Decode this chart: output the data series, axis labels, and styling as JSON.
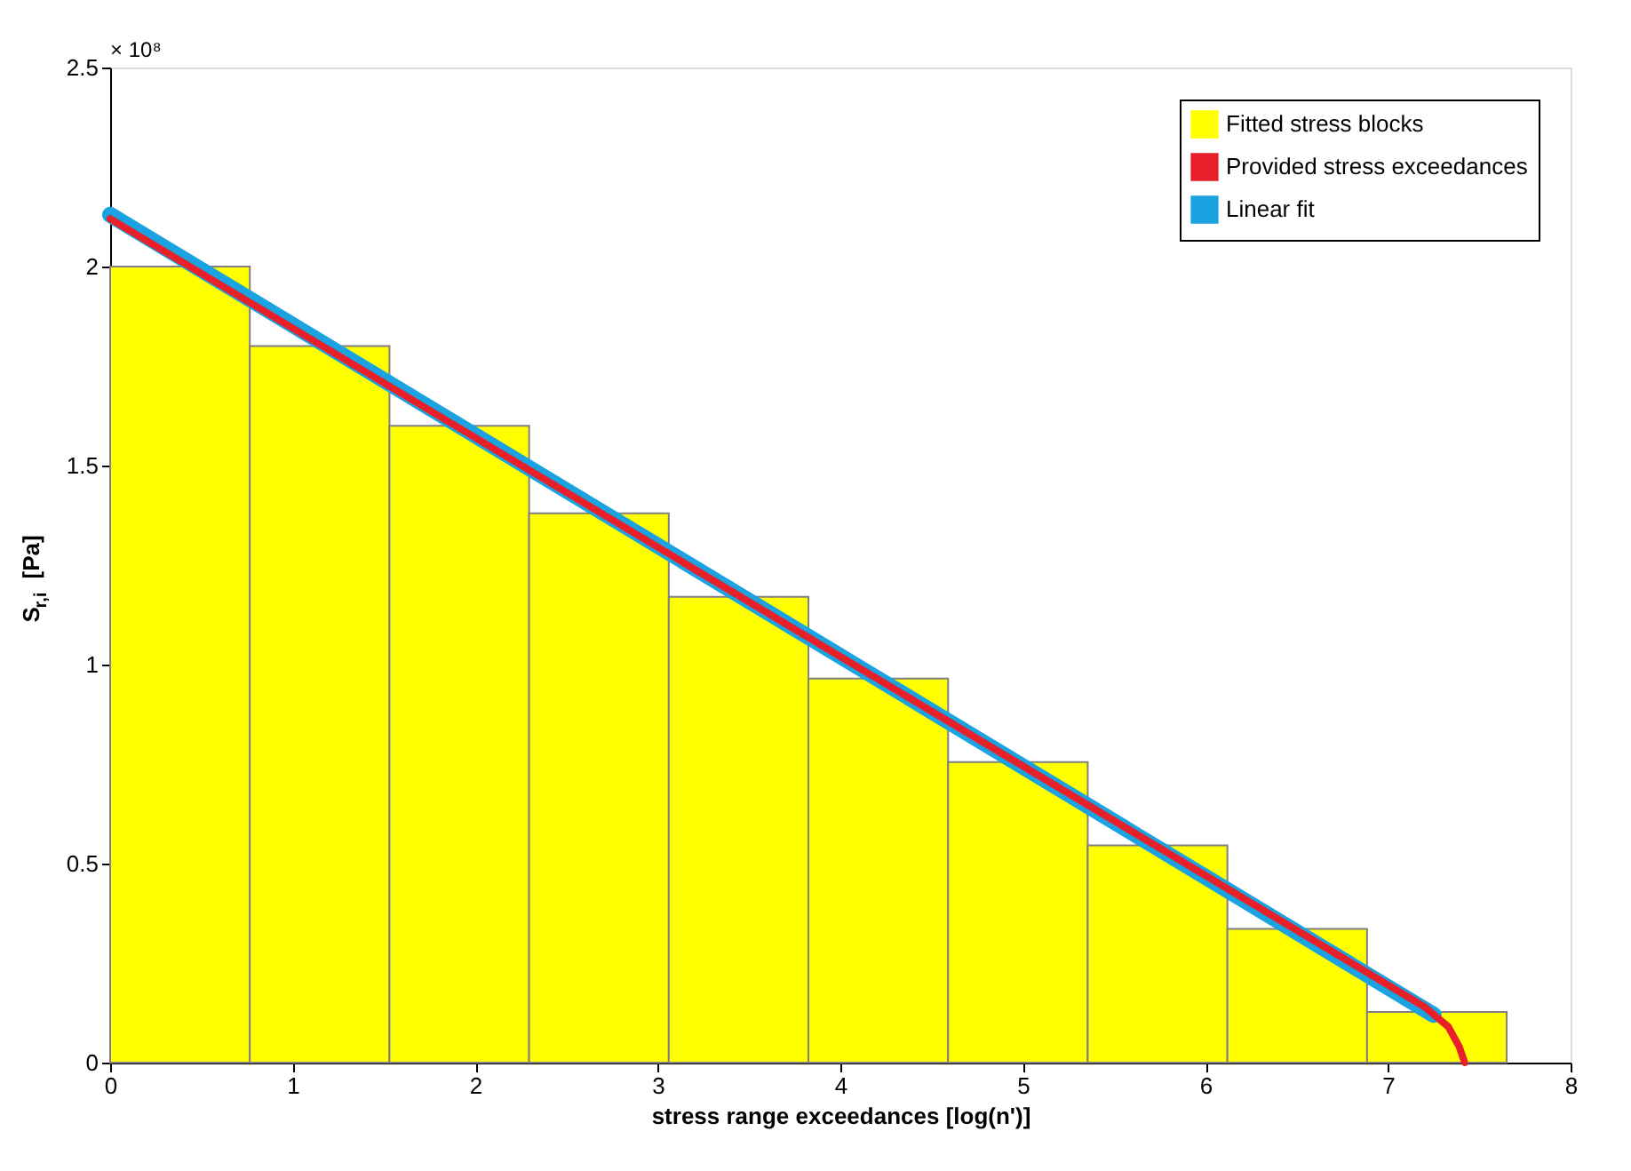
{
  "chart_data": {
    "type": "histogram",
    "xlabel": "stress range exceedances [log(n')]",
    "ylabel": "S$_{r,i}$ [Pa]",
    "annotations": [
      "× 10⁸"
    ],
    "xlim": [
      0,
      8
    ],
    "xticks": [
      0,
      1,
      2,
      3,
      4,
      5,
      6,
      7,
      8
    ],
    "ylim": [
      0,
      2.5
    ],
    "yticks": [
      0,
      0.5,
      1,
      1.5,
      2,
      2.5
    ],
    "legend": "top right",
    "grid": false,
    "series": [
      {
        "name": "Fitted stress blocks",
        "color": "#ffff00",
        "bins": [
          0,
          0.765,
          1.53,
          2.295,
          3.06,
          3.825,
          4.59,
          5.355,
          6.12,
          6.885,
          7.65
        ],
        "values": [
          2.0,
          1.8,
          1.6,
          1.38,
          1.17,
          0.965,
          0.755,
          0.546,
          0.336,
          0.127
        ]
      },
      {
        "name": "Provided stress exceedances",
        "type": "line",
        "color": "#e8202a",
        "x": [
          0,
          7.2,
          7.33,
          7.39,
          7.42
        ],
        "values": [
          2.12,
          0.14,
          0.09,
          0.04,
          0
        ]
      },
      {
        "name": "Linear fit",
        "type": "line",
        "color": "#1aa3e0",
        "x": [
          0,
          7.25
        ],
        "values": [
          2.13,
          0.12
        ]
      }
    ]
  }
}
